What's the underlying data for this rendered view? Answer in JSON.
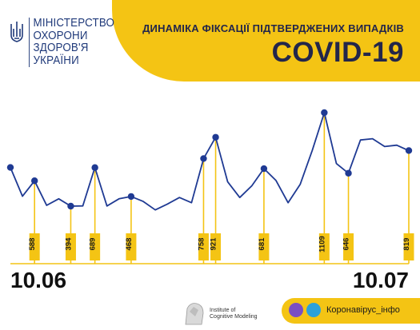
{
  "header": {
    "ministry_lines": [
      "МІНІСТЕРСТВО",
      "ОХОРОНИ",
      "ЗДОРОВ'Я",
      "УКРАЇНИ"
    ],
    "subtitle": "ДИНАМІКА ФІКСАЦІЇ ПІДТВЕРДЖЕНИХ ВИПАДКІВ",
    "title": "COVID-19"
  },
  "dates": {
    "start": "10.06",
    "end": "10.07"
  },
  "footer": {
    "institute_lines": [
      "Institute of",
      "Cognitive Modeling"
    ],
    "contact": "Коронавірус_інфо",
    "icons": [
      "viber-icon",
      "telegram-icon"
    ]
  },
  "colors": {
    "accent": "#f4c414",
    "line": "#1f3a93",
    "marker": "#f4c414",
    "title": "#23264a"
  },
  "chart_data": {
    "type": "line",
    "x_start_label": "10.06",
    "x_end_label": "10.07",
    "values": [
      690,
      470,
      588,
      400,
      450,
      394,
      396,
      689,
      395,
      450,
      468,
      430,
      365,
      410,
      460,
      420,
      758,
      921,
      580,
      460,
      550,
      681,
      590,
      420,
      560,
      820,
      1109,
      720,
      646,
      900,
      910,
      850,
      860,
      819
    ],
    "labeled_points": [
      {
        "index": 2,
        "label": "588"
      },
      {
        "index": 5,
        "label": "394"
      },
      {
        "index": 7,
        "label": "689"
      },
      {
        "index": 10,
        "label": "468"
      },
      {
        "index": 16,
        "label": "758"
      },
      {
        "index": 17,
        "label": "921"
      },
      {
        "index": 21,
        "label": "681"
      },
      {
        "index": 26,
        "label": "1109"
      },
      {
        "index": 28,
        "label": "646"
      },
      {
        "index": 33,
        "label": "819"
      }
    ],
    "grid": false,
    "legend": "none"
  }
}
